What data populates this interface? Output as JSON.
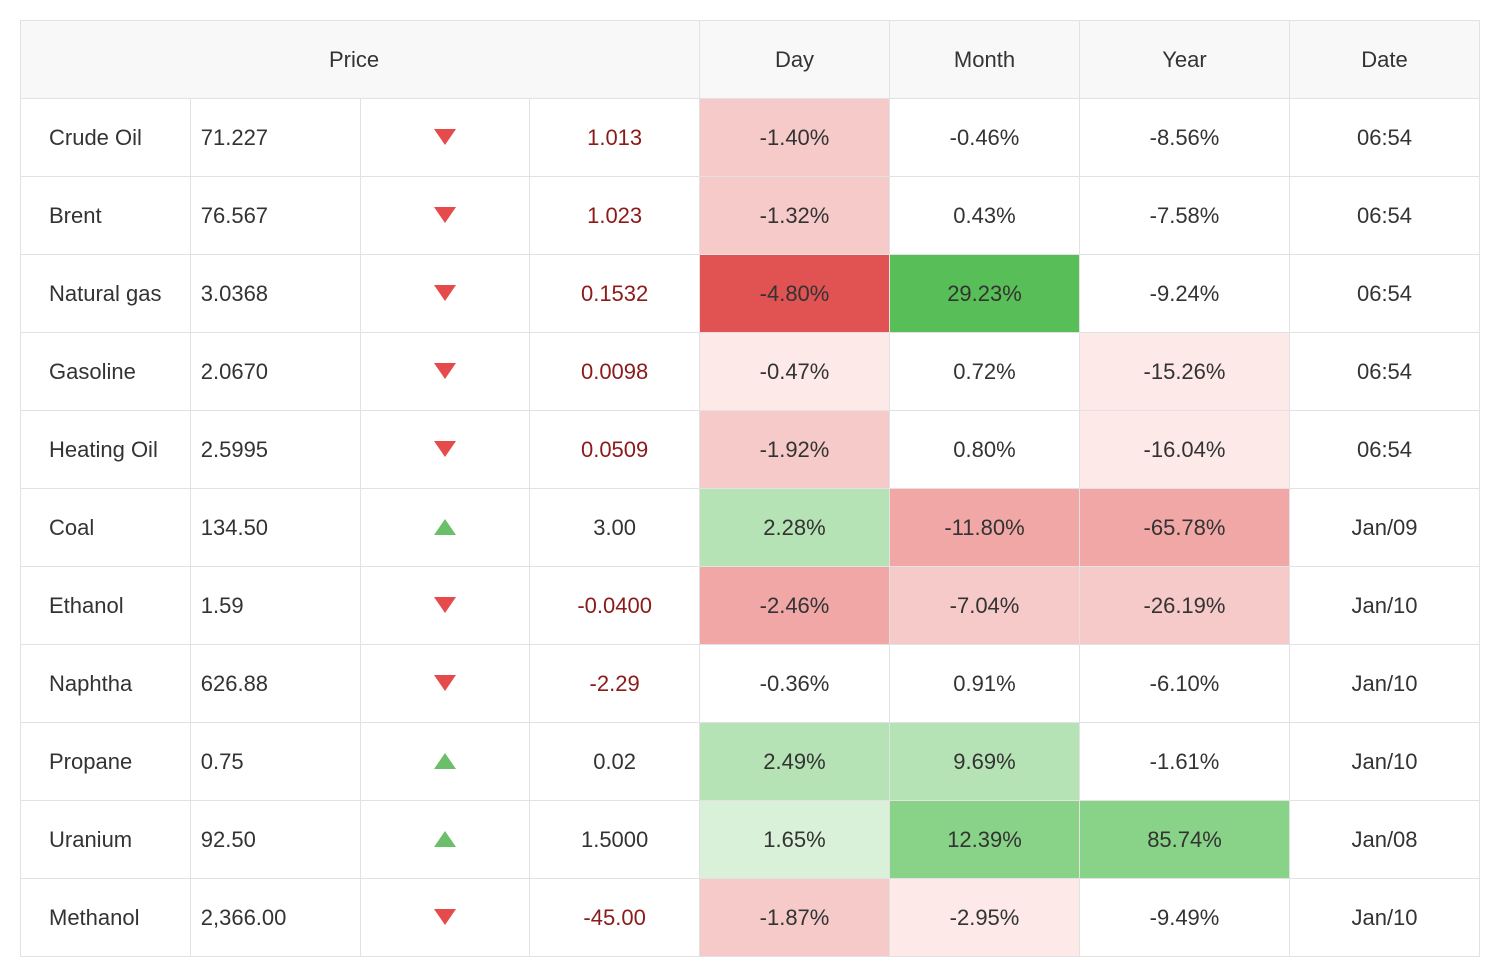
{
  "headers": {
    "price": "Price",
    "day": "Day",
    "month": "Month",
    "year": "Year",
    "date": "Date"
  },
  "colors": {
    "border": "#e2e2e2",
    "header_bg": "#f8f8f8",
    "text": "#333333",
    "neg_text": "#8b1a1a",
    "arrow_down": "#e54b4b",
    "arrow_up": "#6bbf6b"
  },
  "heat": {
    "neg_strong": "#e15352",
    "neg_med": "#f0a7a6",
    "neg_light": "#f6cac9",
    "neg_faint": "#fce9e8",
    "pos_strong": "#58bf58",
    "pos_med": "#89d389",
    "pos_light": "#b5e3b5",
    "pos_faint": "#d9f0d9",
    "none": "#ffffff"
  },
  "rows": [
    {
      "name": "Crude Oil",
      "price": "71.227",
      "dir": "down",
      "change": "1.013",
      "day": {
        "v": "-1.40%",
        "bg": "neg_light"
      },
      "month": {
        "v": "-0.46%",
        "bg": "none"
      },
      "year": {
        "v": "-8.56%",
        "bg": "none"
      },
      "date": "06:54"
    },
    {
      "name": "Brent",
      "price": "76.567",
      "dir": "down",
      "change": "1.023",
      "day": {
        "v": "-1.32%",
        "bg": "neg_light"
      },
      "month": {
        "v": "0.43%",
        "bg": "none"
      },
      "year": {
        "v": "-7.58%",
        "bg": "none"
      },
      "date": "06:54"
    },
    {
      "name": "Natural gas",
      "price": "3.0368",
      "dir": "down",
      "change": "0.1532",
      "day": {
        "v": "-4.80%",
        "bg": "neg_strong"
      },
      "month": {
        "v": "29.23%",
        "bg": "pos_strong"
      },
      "year": {
        "v": "-9.24%",
        "bg": "none"
      },
      "date": "06:54"
    },
    {
      "name": "Gasoline",
      "price": "2.0670",
      "dir": "down",
      "change": "0.0098",
      "day": {
        "v": "-0.47%",
        "bg": "neg_faint"
      },
      "month": {
        "v": "0.72%",
        "bg": "none"
      },
      "year": {
        "v": "-15.26%",
        "bg": "neg_faint"
      },
      "date": "06:54"
    },
    {
      "name": "Heating Oil",
      "price": "2.5995",
      "dir": "down",
      "change": "0.0509",
      "day": {
        "v": "-1.92%",
        "bg": "neg_light"
      },
      "month": {
        "v": "0.80%",
        "bg": "none"
      },
      "year": {
        "v": "-16.04%",
        "bg": "neg_faint"
      },
      "date": "06:54"
    },
    {
      "name": "Coal",
      "price": "134.50",
      "dir": "up",
      "change": "3.00",
      "day": {
        "v": "2.28%",
        "bg": "pos_light"
      },
      "month": {
        "v": "-11.80%",
        "bg": "neg_med"
      },
      "year": {
        "v": "-65.78%",
        "bg": "neg_med"
      },
      "date": "Jan/09"
    },
    {
      "name": "Ethanol",
      "price": "1.59",
      "dir": "down",
      "change": "-0.0400",
      "day": {
        "v": "-2.46%",
        "bg": "neg_med"
      },
      "month": {
        "v": "-7.04%",
        "bg": "neg_light"
      },
      "year": {
        "v": "-26.19%",
        "bg": "neg_light"
      },
      "date": "Jan/10"
    },
    {
      "name": "Naphtha",
      "price": "626.88",
      "dir": "down",
      "change": "-2.29",
      "day": {
        "v": "-0.36%",
        "bg": "none"
      },
      "month": {
        "v": "0.91%",
        "bg": "none"
      },
      "year": {
        "v": "-6.10%",
        "bg": "none"
      },
      "date": "Jan/10"
    },
    {
      "name": "Propane",
      "price": "0.75",
      "dir": "up",
      "change": "0.02",
      "day": {
        "v": "2.49%",
        "bg": "pos_light"
      },
      "month": {
        "v": "9.69%",
        "bg": "pos_light"
      },
      "year": {
        "v": "-1.61%",
        "bg": "none"
      },
      "date": "Jan/10"
    },
    {
      "name": "Uranium",
      "price": "92.50",
      "dir": "up",
      "change": "1.5000",
      "day": {
        "v": "1.65%",
        "bg": "pos_faint"
      },
      "month": {
        "v": "12.39%",
        "bg": "pos_med"
      },
      "year": {
        "v": "85.74%",
        "bg": "pos_med"
      },
      "date": "Jan/08"
    },
    {
      "name": "Methanol",
      "price": "2,366.00",
      "dir": "down",
      "change": "-45.00",
      "day": {
        "v": "-1.87%",
        "bg": "neg_light"
      },
      "month": {
        "v": "-2.95%",
        "bg": "neg_faint"
      },
      "year": {
        "v": "-9.49%",
        "bg": "none"
      },
      "date": "Jan/10"
    }
  ]
}
